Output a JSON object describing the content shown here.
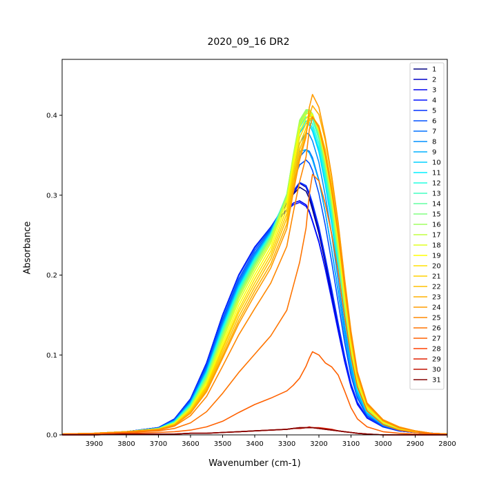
{
  "chart_data": {
    "type": "line",
    "title": "2020_09_16 DR2",
    "xlabel": "Wavenumber (cm-1)",
    "ylabel": "Absorbance",
    "xlim": [
      4000,
      2800
    ],
    "ylim": [
      0,
      0.47
    ],
    "x_ticks": [
      3900,
      3800,
      3700,
      3600,
      3500,
      3400,
      3300,
      3200,
      3100,
      3000,
      2900,
      2800
    ],
    "y_ticks": [
      0.0,
      0.1,
      0.2,
      0.3,
      0.4
    ],
    "x_tick_labels": [
      "3900",
      "3800",
      "3700",
      "3600",
      "3500",
      "3400",
      "3300",
      "3200",
      "3100",
      "3000",
      "2900",
      "2800"
    ],
    "y_tick_labels": [
      "0.0",
      "0.1",
      "0.2",
      "0.3",
      "0.4"
    ],
    "grid": false,
    "legend_position": "upper-right",
    "x": [
      4000,
      3900,
      3800,
      3700,
      3650,
      3600,
      3550,
      3500,
      3450,
      3400,
      3350,
      3300,
      3280,
      3260,
      3240,
      3230,
      3220,
      3200,
      3180,
      3160,
      3140,
      3120,
      3100,
      3080,
      3050,
      3000,
      2950,
      2900,
      2850,
      2800
    ],
    "series": [
      {
        "name": "1",
        "color": "#000080",
        "values": [
          0.001,
          0.002,
          0.004,
          0.009,
          0.02,
          0.045,
          0.09,
          0.15,
          0.2,
          0.235,
          0.26,
          0.289,
          0.301,
          0.31,
          0.305,
          0.296,
          0.282,
          0.252,
          0.215,
          0.175,
          0.135,
          0.095,
          0.062,
          0.04,
          0.022,
          0.01,
          0.005,
          0.003,
          0.002,
          0.001
        ]
      },
      {
        "name": "2",
        "color": "#0000c8",
        "values": [
          0.001,
          0.002,
          0.004,
          0.009,
          0.02,
          0.045,
          0.09,
          0.15,
          0.2,
          0.235,
          0.26,
          0.289,
          0.302,
          0.315,
          0.31,
          0.3,
          0.286,
          0.255,
          0.218,
          0.178,
          0.137,
          0.097,
          0.063,
          0.04,
          0.022,
          0.01,
          0.005,
          0.003,
          0.002,
          0.001
        ]
      },
      {
        "name": "3",
        "color": "#0000f0",
        "values": [
          0.001,
          0.002,
          0.004,
          0.009,
          0.02,
          0.045,
          0.09,
          0.15,
          0.2,
          0.235,
          0.26,
          0.282,
          0.29,
          0.293,
          0.288,
          0.28,
          0.268,
          0.242,
          0.208,
          0.17,
          0.131,
          0.093,
          0.061,
          0.039,
          0.021,
          0.01,
          0.005,
          0.003,
          0.002,
          0.001
        ]
      },
      {
        "name": "4",
        "color": "#0010ff",
        "values": [
          0.001,
          0.002,
          0.004,
          0.009,
          0.02,
          0.045,
          0.09,
          0.15,
          0.2,
          0.235,
          0.26,
          0.281,
          0.288,
          0.291,
          0.286,
          0.279,
          0.267,
          0.241,
          0.207,
          0.169,
          0.13,
          0.092,
          0.06,
          0.038,
          0.021,
          0.01,
          0.005,
          0.003,
          0.002,
          0.001
        ]
      },
      {
        "name": "5",
        "color": "#0030ff",
        "values": [
          0.001,
          0.002,
          0.004,
          0.009,
          0.02,
          0.045,
          0.089,
          0.149,
          0.199,
          0.234,
          0.26,
          0.291,
          0.305,
          0.316,
          0.312,
          0.303,
          0.29,
          0.26,
          0.222,
          0.182,
          0.14,
          0.099,
          0.064,
          0.041,
          0.022,
          0.01,
          0.005,
          0.003,
          0.002,
          0.001
        ]
      },
      {
        "name": "6",
        "color": "#0050ff",
        "values": [
          0.001,
          0.002,
          0.004,
          0.009,
          0.019,
          0.043,
          0.086,
          0.145,
          0.195,
          0.231,
          0.258,
          0.294,
          0.318,
          0.338,
          0.344,
          0.34,
          0.331,
          0.302,
          0.262,
          0.216,
          0.166,
          0.116,
          0.074,
          0.046,
          0.024,
          0.011,
          0.006,
          0.003,
          0.002,
          0.001
        ]
      },
      {
        "name": "7",
        "color": "#0070ff",
        "values": [
          0.001,
          0.002,
          0.004,
          0.008,
          0.018,
          0.042,
          0.084,
          0.142,
          0.192,
          0.228,
          0.256,
          0.296,
          0.325,
          0.348,
          0.357,
          0.355,
          0.347,
          0.319,
          0.278,
          0.231,
          0.179,
          0.125,
          0.08,
          0.049,
          0.026,
          0.012,
          0.006,
          0.003,
          0.002,
          0.001
        ]
      },
      {
        "name": "8",
        "color": "#0090ff",
        "values": [
          0.001,
          0.002,
          0.004,
          0.008,
          0.018,
          0.041,
          0.082,
          0.139,
          0.189,
          0.226,
          0.255,
          0.298,
          0.333,
          0.365,
          0.378,
          0.376,
          0.368,
          0.341,
          0.299,
          0.25,
          0.194,
          0.135,
          0.086,
          0.052,
          0.027,
          0.012,
          0.006,
          0.003,
          0.002,
          0.001
        ]
      },
      {
        "name": "9",
        "color": "#00b0ff",
        "values": [
          0.001,
          0.002,
          0.004,
          0.008,
          0.017,
          0.04,
          0.08,
          0.137,
          0.187,
          0.224,
          0.254,
          0.297,
          0.329,
          0.355,
          0.357,
          0.353,
          0.344,
          0.318,
          0.278,
          0.232,
          0.181,
          0.127,
          0.082,
          0.05,
          0.026,
          0.012,
          0.006,
          0.003,
          0.002,
          0.001
        ]
      },
      {
        "name": "10",
        "color": "#00d0ff",
        "values": [
          0.001,
          0.002,
          0.004,
          0.008,
          0.017,
          0.039,
          0.079,
          0.135,
          0.185,
          0.222,
          0.253,
          0.3,
          0.341,
          0.378,
          0.39,
          0.388,
          0.38,
          0.354,
          0.313,
          0.264,
          0.207,
          0.145,
          0.092,
          0.055,
          0.028,
          0.013,
          0.006,
          0.003,
          0.002,
          0.001
        ]
      },
      {
        "name": "11",
        "color": "#00f0ff",
        "values": [
          0.001,
          0.002,
          0.004,
          0.008,
          0.017,
          0.039,
          0.078,
          0.134,
          0.184,
          0.221,
          0.252,
          0.3,
          0.343,
          0.381,
          0.393,
          0.391,
          0.384,
          0.358,
          0.318,
          0.269,
          0.212,
          0.149,
          0.095,
          0.057,
          0.029,
          0.013,
          0.007,
          0.003,
          0.002,
          0.001
        ]
      },
      {
        "name": "12",
        "color": "#20ffe0",
        "values": [
          0.001,
          0.002,
          0.004,
          0.008,
          0.016,
          0.038,
          0.077,
          0.132,
          0.182,
          0.22,
          0.251,
          0.301,
          0.346,
          0.385,
          0.398,
          0.396,
          0.389,
          0.364,
          0.324,
          0.275,
          0.217,
          0.153,
          0.097,
          0.058,
          0.029,
          0.014,
          0.007,
          0.004,
          0.002,
          0.001
        ]
      },
      {
        "name": "13",
        "color": "#40ffc0",
        "values": [
          0.001,
          0.002,
          0.004,
          0.008,
          0.016,
          0.037,
          0.075,
          0.13,
          0.18,
          0.218,
          0.25,
          0.301,
          0.348,
          0.389,
          0.403,
          0.402,
          0.395,
          0.37,
          0.33,
          0.281,
          0.222,
          0.157,
          0.1,
          0.06,
          0.03,
          0.014,
          0.007,
          0.004,
          0.002,
          0.001
        ]
      },
      {
        "name": "14",
        "color": "#60ffa0",
        "values": [
          0.001,
          0.002,
          0.004,
          0.008,
          0.016,
          0.036,
          0.074,
          0.128,
          0.178,
          0.216,
          0.249,
          0.301,
          0.349,
          0.391,
          0.405,
          0.404,
          0.398,
          0.373,
          0.334,
          0.285,
          0.226,
          0.16,
          0.102,
          0.061,
          0.031,
          0.014,
          0.007,
          0.004,
          0.002,
          0.001
        ]
      },
      {
        "name": "15",
        "color": "#80ff80",
        "values": [
          0.001,
          0.002,
          0.004,
          0.008,
          0.015,
          0.035,
          0.072,
          0.126,
          0.176,
          0.214,
          0.247,
          0.3,
          0.349,
          0.392,
          0.406,
          0.405,
          0.4,
          0.376,
          0.337,
          0.288,
          0.229,
          0.163,
          0.104,
          0.062,
          0.031,
          0.015,
          0.007,
          0.004,
          0.002,
          0.001
        ]
      },
      {
        "name": "16",
        "color": "#a0ff60",
        "values": [
          0.001,
          0.002,
          0.004,
          0.008,
          0.015,
          0.035,
          0.071,
          0.124,
          0.174,
          0.212,
          0.246,
          0.3,
          0.35,
          0.394,
          0.407,
          0.407,
          0.402,
          0.379,
          0.34,
          0.291,
          0.232,
          0.165,
          0.106,
          0.063,
          0.032,
          0.015,
          0.007,
          0.004,
          0.002,
          0.001
        ]
      },
      {
        "name": "17",
        "color": "#c0ff40",
        "values": [
          0.001,
          0.002,
          0.004,
          0.007,
          0.015,
          0.034,
          0.069,
          0.121,
          0.171,
          0.209,
          0.243,
          0.297,
          0.347,
          0.39,
          0.404,
          0.405,
          0.401,
          0.379,
          0.342,
          0.294,
          0.235,
          0.168,
          0.108,
          0.065,
          0.033,
          0.015,
          0.008,
          0.004,
          0.002,
          0.001
        ]
      },
      {
        "name": "18",
        "color": "#e0ff20",
        "values": [
          0.001,
          0.002,
          0.004,
          0.007,
          0.014,
          0.033,
          0.067,
          0.118,
          0.167,
          0.205,
          0.24,
          0.294,
          0.344,
          0.386,
          0.401,
          0.404,
          0.401,
          0.381,
          0.345,
          0.298,
          0.24,
          0.172,
          0.111,
          0.067,
          0.034,
          0.016,
          0.008,
          0.004,
          0.002,
          0.001
        ]
      },
      {
        "name": "19",
        "color": "#ffff00",
        "values": [
          0.001,
          0.002,
          0.004,
          0.007,
          0.014,
          0.032,
          0.065,
          0.114,
          0.162,
          0.2,
          0.235,
          0.289,
          0.338,
          0.38,
          0.396,
          0.401,
          0.4,
          0.382,
          0.348,
          0.302,
          0.245,
          0.176,
          0.114,
          0.069,
          0.035,
          0.016,
          0.008,
          0.004,
          0.002,
          0.001
        ]
      },
      {
        "name": "20",
        "color": "#ffe000",
        "values": [
          0.001,
          0.002,
          0.004,
          0.007,
          0.013,
          0.031,
          0.062,
          0.11,
          0.157,
          0.195,
          0.23,
          0.283,
          0.331,
          0.372,
          0.39,
          0.398,
          0.399,
          0.383,
          0.351,
          0.306,
          0.249,
          0.18,
          0.117,
          0.071,
          0.036,
          0.017,
          0.008,
          0.004,
          0.002,
          0.001
        ]
      },
      {
        "name": "21",
        "color": "#ffd000",
        "values": [
          0.001,
          0.002,
          0.004,
          0.007,
          0.013,
          0.03,
          0.06,
          0.107,
          0.153,
          0.19,
          0.225,
          0.277,
          0.324,
          0.364,
          0.384,
          0.395,
          0.398,
          0.385,
          0.354,
          0.31,
          0.253,
          0.184,
          0.12,
          0.073,
          0.037,
          0.017,
          0.009,
          0.005,
          0.002,
          0.001
        ]
      },
      {
        "name": "22",
        "color": "#ffc000",
        "values": [
          0.001,
          0.002,
          0.004,
          0.007,
          0.013,
          0.029,
          0.058,
          0.103,
          0.148,
          0.185,
          0.22,
          0.271,
          0.317,
          0.357,
          0.379,
          0.393,
          0.398,
          0.387,
          0.357,
          0.313,
          0.257,
          0.188,
          0.123,
          0.075,
          0.038,
          0.018,
          0.009,
          0.005,
          0.002,
          0.001
        ]
      },
      {
        "name": "23",
        "color": "#ffb000",
        "values": [
          0.001,
          0.002,
          0.004,
          0.007,
          0.012,
          0.028,
          0.056,
          0.099,
          0.143,
          0.18,
          0.214,
          0.264,
          0.31,
          0.35,
          0.376,
          0.399,
          0.412,
          0.401,
          0.368,
          0.322,
          0.265,
          0.194,
          0.127,
          0.077,
          0.039,
          0.018,
          0.009,
          0.005,
          0.002,
          0.001
        ]
      },
      {
        "name": "24",
        "color": "#ff9c00",
        "values": [
          0.001,
          0.002,
          0.004,
          0.007,
          0.012,
          0.027,
          0.054,
          0.096,
          0.139,
          0.175,
          0.209,
          0.258,
          0.303,
          0.344,
          0.373,
          0.41,
          0.426,
          0.41,
          0.372,
          0.324,
          0.266,
          0.196,
          0.13,
          0.079,
          0.04,
          0.019,
          0.01,
          0.005,
          0.002,
          0.001
        ]
      },
      {
        "name": "25",
        "color": "#ff8800",
        "values": [
          0.001,
          0.002,
          0.003,
          0.006,
          0.011,
          0.024,
          0.048,
          0.086,
          0.125,
          0.158,
          0.19,
          0.236,
          0.278,
          0.317,
          0.348,
          0.382,
          0.398,
          0.385,
          0.35,
          0.305,
          0.252,
          0.187,
          0.125,
          0.077,
          0.039,
          0.018,
          0.009,
          0.005,
          0.002,
          0.001
        ]
      },
      {
        "name": "26",
        "color": "#ff7400",
        "values": [
          0.001,
          0.001,
          0.003,
          0.005,
          0.008,
          0.015,
          0.029,
          0.052,
          0.078,
          0.101,
          0.124,
          0.156,
          0.186,
          0.216,
          0.259,
          0.301,
          0.326,
          0.318,
          0.289,
          0.251,
          0.205,
          0.149,
          0.098,
          0.06,
          0.03,
          0.013,
          0.006,
          0.003,
          0.002,
          0.001
        ]
      },
      {
        "name": "27",
        "color": "#ff6000",
        "values": [
          0.001,
          0.001,
          0.002,
          0.003,
          0.004,
          0.006,
          0.01,
          0.017,
          0.028,
          0.038,
          0.046,
          0.055,
          0.062,
          0.071,
          0.086,
          0.096,
          0.104,
          0.1,
          0.09,
          0.085,
          0.075,
          0.055,
          0.034,
          0.02,
          0.01,
          0.004,
          0.002,
          0.001,
          0.001,
          0.0
        ]
      },
      {
        "name": "28",
        "color": "#ff4000",
        "values": [
          0.0,
          0.0,
          0.001,
          0.001,
          0.001,
          0.002,
          0.002,
          0.003,
          0.004,
          0.005,
          0.006,
          0.007,
          0.008,
          0.008,
          0.009,
          0.009,
          0.009,
          0.008,
          0.007,
          0.006,
          0.005,
          0.004,
          0.003,
          0.002,
          0.001,
          0.0,
          0.0,
          0.0,
          0.0,
          0.0
        ]
      },
      {
        "name": "29",
        "color": "#e02000",
        "values": [
          0.0,
          0.0,
          0.001,
          0.001,
          0.001,
          0.002,
          0.002,
          0.003,
          0.004,
          0.005,
          0.006,
          0.007,
          0.008,
          0.009,
          0.009,
          0.01,
          0.009,
          0.009,
          0.008,
          0.007,
          0.005,
          0.004,
          0.003,
          0.002,
          0.001,
          0.0,
          0.0,
          0.0,
          0.0,
          0.0
        ]
      },
      {
        "name": "30",
        "color": "#c01000",
        "values": [
          0.0,
          0.0,
          0.001,
          0.001,
          0.001,
          0.002,
          0.002,
          0.003,
          0.004,
          0.005,
          0.006,
          0.007,
          0.008,
          0.008,
          0.009,
          0.009,
          0.009,
          0.008,
          0.007,
          0.006,
          0.005,
          0.004,
          0.003,
          0.002,
          0.001,
          0.0,
          0.0,
          0.0,
          0.0,
          0.0
        ]
      },
      {
        "name": "31",
        "color": "#800000",
        "values": [
          0.0,
          0.0,
          0.001,
          0.001,
          0.001,
          0.002,
          0.002,
          0.003,
          0.004,
          0.005,
          0.006,
          0.007,
          0.008,
          0.009,
          0.009,
          0.009,
          0.009,
          0.008,
          0.007,
          0.006,
          0.005,
          0.004,
          0.003,
          0.002,
          0.001,
          0.0,
          0.0,
          0.0,
          0.0,
          0.0
        ]
      }
    ]
  }
}
